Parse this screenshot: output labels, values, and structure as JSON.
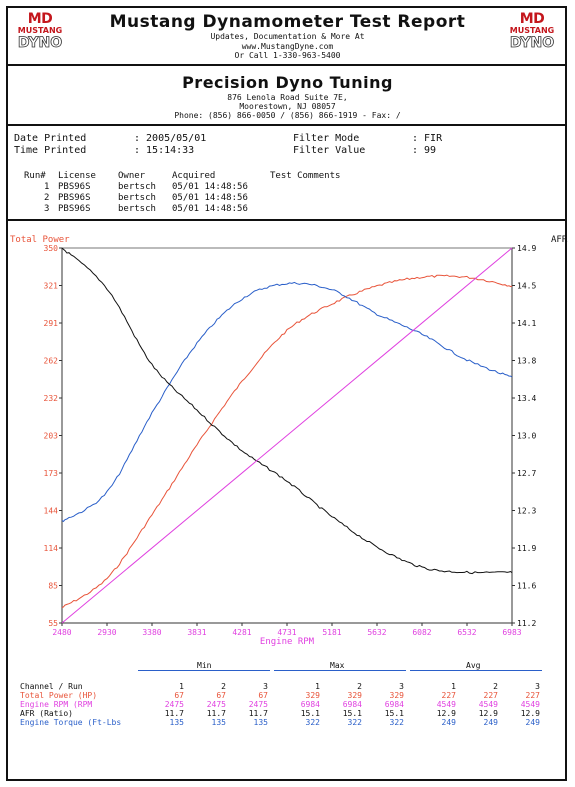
{
  "header": {
    "logo_left": {
      "line1": "MD",
      "line2": "MUSTANG",
      "line3": "DYNO"
    },
    "logo_right": {
      "line1": "MD",
      "line2": "MUSTANG",
      "line3": "DYNO"
    },
    "title": "Mustang Dynamometer Test Report",
    "sub1": "Updates, Documentation & More At",
    "sub2": "www.MustangDyne.com",
    "sub3": "Or Call 1-330-963-5400"
  },
  "shop": {
    "name": "Precision Dyno Tuning",
    "addr1": "876 Lenola Road Suite 7E,",
    "addr2": "Moorestown, NJ  08057",
    "phone": "Phone: (856) 866-0050 / (856) 866-1919 - Fax:  /"
  },
  "info": {
    "date_label": "Date Printed",
    "date_value": ": 2005/05/01",
    "time_label": "Time Printed",
    "time_value": ": 15:14:33",
    "filter_mode_label": "Filter Mode",
    "filter_mode_value": ": FIR",
    "filter_value_label": "Filter Value",
    "filter_value_value": ": 99"
  },
  "runs": {
    "headers": [
      "Run#",
      "License",
      "Owner",
      "Acquired",
      "Test Comments"
    ],
    "rows": [
      [
        "1",
        "PBS96S",
        "bertsch",
        "05/01 14:48:56",
        ""
      ],
      [
        "2",
        "PBS96S",
        "bertsch",
        "05/01 14:48:56",
        ""
      ],
      [
        "3",
        "PBS96S",
        "bertsch",
        "05/01 14:48:56",
        ""
      ]
    ]
  },
  "chart_data": {
    "type": "line",
    "xlabel": "Engine RPM",
    "y_left_label": "Total Power",
    "y_right_label": "AFR",
    "x_ticks": [
      "2480",
      "2930",
      "3380",
      "3831",
      "4281",
      "4731",
      "5181",
      "5632",
      "6082",
      "6532",
      "6983"
    ],
    "y_left_ticks": [
      "350",
      "321",
      "291",
      "262",
      "232",
      "203",
      "173",
      "144",
      "114",
      "85",
      "55"
    ],
    "y_right_ticks": [
      "14.9",
      "14.5",
      "14.1",
      "13.8",
      "13.4",
      "13.0",
      "12.7",
      "12.3",
      "11.9",
      "11.6",
      "11.2"
    ],
    "xlim": [
      2480,
      6983
    ],
    "ylim_left": [
      55,
      350
    ],
    "ylim_right": [
      11.2,
      14.9
    ],
    "grid": false,
    "colors": {
      "power": "#e8543a",
      "torque": "#2a5fc9",
      "afr": "#111111",
      "rpm": "#e040e0"
    },
    "series": [
      {
        "name": "Total Power",
        "axis": "left",
        "color": "#e8543a",
        "x": [
          2480,
          2930,
          3380,
          3831,
          4281,
          4731,
          5181,
          5632,
          6082,
          6532,
          6983
        ],
        "y": [
          67,
          90,
          140,
          195,
          245,
          285,
          306,
          320,
          327,
          327,
          320
        ]
      },
      {
        "name": "Engine Torque",
        "axis": "left",
        "color": "#2a5fc9",
        "x": [
          2480,
          2930,
          3380,
          3831,
          4281,
          4731,
          5181,
          5632,
          6082,
          6532,
          6983
        ],
        "y": [
          135,
          158,
          220,
          275,
          310,
          322,
          317,
          298,
          282,
          262,
          248
        ]
      },
      {
        "name": "AFR",
        "axis": "right",
        "color": "#111111",
        "x": [
          2480,
          2930,
          3380,
          3831,
          4281,
          4731,
          5181,
          5632,
          6082,
          6532,
          6983
        ],
        "y": [
          14.9,
          14.5,
          13.75,
          13.3,
          12.9,
          12.6,
          12.25,
          11.95,
          11.75,
          11.7,
          11.7
        ]
      },
      {
        "name": "Engine RPM",
        "axis": "left",
        "color": "#e040e0",
        "x": [
          2480,
          6983
        ],
        "y": [
          55,
          350
        ]
      }
    ]
  },
  "summary": {
    "group_headers": [
      "Min",
      "Max",
      "Avg"
    ],
    "run_headers": [
      "1",
      "2",
      "3",
      "1",
      "2",
      "3",
      "1",
      "2",
      "3"
    ],
    "channel_header": "Channel / Run",
    "rows": [
      {
        "label": "Total Power (HP)",
        "color": "#e8543a",
        "values": [
          "67",
          "67",
          "67",
          "329",
          "329",
          "329",
          "227",
          "227",
          "227"
        ]
      },
      {
        "label": "Engine RPM (RPM",
        "color": "#e040e0",
        "values": [
          "2475",
          "2475",
          "2475",
          "6984",
          "6984",
          "6984",
          "4549",
          "4549",
          "4549"
        ]
      },
      {
        "label": "AFR (Ratio)",
        "color": "#111111",
        "values": [
          "11.7",
          "11.7",
          "11.7",
          "15.1",
          "15.1",
          "15.1",
          "12.9",
          "12.9",
          "12.9"
        ]
      },
      {
        "label": "Engine Torque (Ft-Lbs",
        "color": "#2a5fc9",
        "values": [
          "135",
          "135",
          "135",
          "322",
          "322",
          "322",
          "249",
          "249",
          "249"
        ]
      }
    ]
  }
}
